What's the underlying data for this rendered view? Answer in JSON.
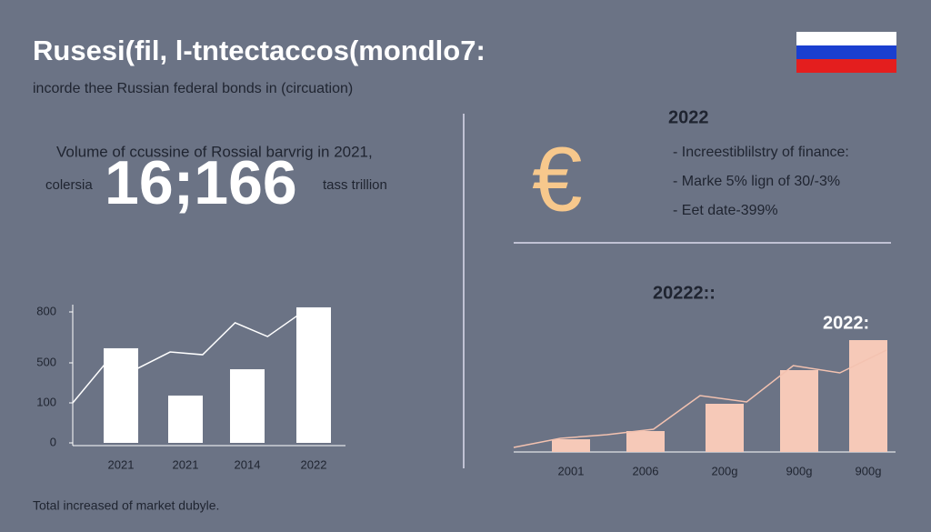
{
  "header": {
    "title": "Rusesi(fil, l-tntectaccos(mondlo7:",
    "subtitle": "incorde thee Russian federal bonds in (circuation)"
  },
  "stat": {
    "caption": "Volume of ccussine of Rossial barvrig in 2021,",
    "left": "colersia",
    "number": "16;166",
    "unit": "tass trillion"
  },
  "panel": {
    "year": "2022",
    "symbol": "€",
    "bullets": [
      "- Increestiblilstry of finance:",
      "- Marke 5% lign of 30/-3%",
      "- Eet date-399%"
    ]
  },
  "footer": "Total increased of market dubyle.",
  "chart_data": [
    {
      "type": "bar",
      "categories": [
        "2021",
        "2021",
        "2014",
        "2022"
      ],
      "values": [
        586,
        173,
        436,
        827
      ],
      "color": "#ffffff",
      "line_values": [
        100,
        491,
        445,
        564,
        548,
        736,
        655,
        789
      ],
      "line_color": "#ffffff",
      "ylim": [
        0,
        830
      ],
      "yticks": [
        0,
        100,
        500,
        800
      ]
    },
    {
      "type": "bar",
      "labels": [
        "20222::",
        "2022:"
      ],
      "categories": [
        "2001",
        "2006",
        "200g",
        "900g",
        "900g"
      ],
      "values": [
        14,
        23,
        53,
        90,
        123
      ],
      "color": "#f6c9b8",
      "line_values": [
        5,
        15,
        19,
        25,
        62,
        55,
        95,
        87,
        112
      ],
      "line_color": "#f3c2b0",
      "ylim": [
        0,
        140
      ]
    }
  ]
}
